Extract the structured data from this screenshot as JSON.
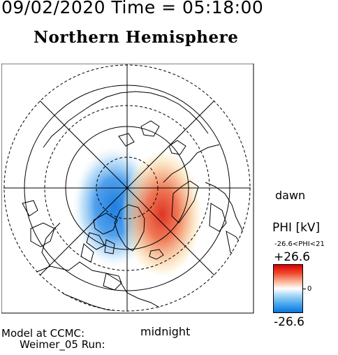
{
  "header": {
    "timestamp": "09/02/2020 Time = 05:18:00",
    "title": "Northern Hemisphere"
  },
  "map": {
    "projection": "polar",
    "pole": "north",
    "background": "#ffffff",
    "potential_cells": [
      {
        "sign": "negative",
        "side": "dusk",
        "color": "#1f7fe0"
      },
      {
        "sign": "positive",
        "side": "dawn",
        "color": "#e03a2a"
      }
    ]
  },
  "labels": {
    "dawn": "dawn",
    "midnight": "midnight"
  },
  "colorbar": {
    "title": "PHI [kV]",
    "range_text": "-26.6<PHI<21",
    "max_label": "+26.6",
    "zero_label": "0",
    "min_label": "-26.6",
    "colors": {
      "max": "#d80000",
      "mid": "#ffffff",
      "min": "#0a74dd"
    }
  },
  "footer": {
    "model_line1": "Model at CCMC:",
    "model_line2": "Weimer_05 Run:"
  }
}
